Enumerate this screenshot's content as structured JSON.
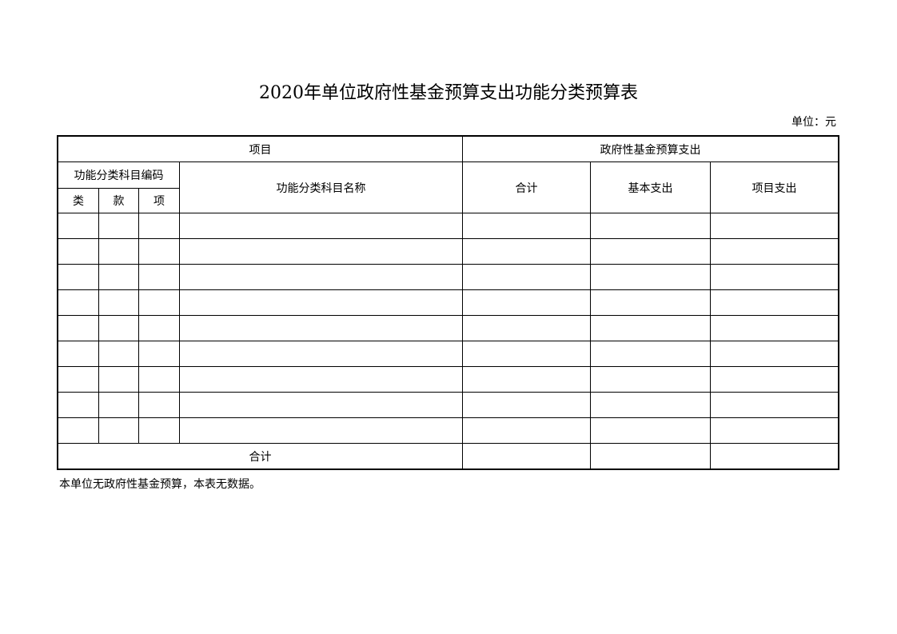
{
  "title": "2020年单位政府性基金预算支出功能分类预算表",
  "unit": "单位：元",
  "header": {
    "item": "项目",
    "gov_fund_expenditure": "政府性基金预算支出",
    "code": "功能分类科目编码",
    "lei": "类",
    "kuan": "款",
    "xiang": "项",
    "name": "功能分类科目名称",
    "total": "合计",
    "basic": "基本支出",
    "project": "项目支出"
  },
  "rows": [
    {},
    {},
    {},
    {},
    {},
    {},
    {},
    {},
    {}
  ],
  "total_row": {
    "label": "合计"
  },
  "note": "本单位无政府性基金预算，本表无数据。"
}
